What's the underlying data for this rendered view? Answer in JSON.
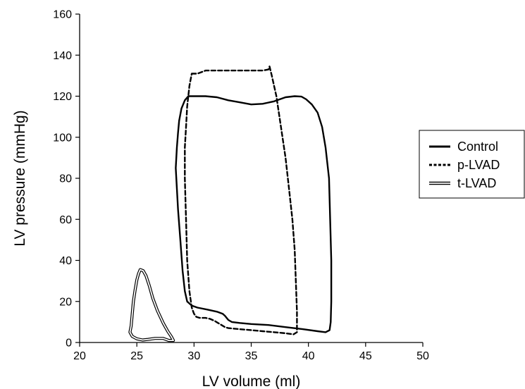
{
  "chart_data": {
    "type": "line",
    "title": "",
    "xlabel": "LV volume (ml)",
    "ylabel": "LV pressure (mmHg)",
    "xlim": [
      20,
      50
    ],
    "ylim": [
      0,
      160
    ],
    "x_ticks": [
      20,
      25,
      30,
      35,
      40,
      45,
      50
    ],
    "y_ticks": [
      0,
      20,
      40,
      60,
      80,
      100,
      120,
      140,
      160
    ],
    "grid": false,
    "legend_position": "right",
    "series": [
      {
        "name": "Control",
        "style": "solid",
        "color": "#000000",
        "x": [
          29.5,
          30.2,
          31.0,
          32.0,
          33.0,
          34.0,
          35.0,
          36.0,
          37.0,
          38.0,
          38.8,
          39.4,
          39.8,
          40.3,
          40.8,
          41.2,
          41.5,
          41.8,
          41.9,
          42.0,
          42.0,
          41.95,
          41.85,
          41.5,
          40.8,
          39.5,
          38.0,
          36.5,
          35.0,
          34.0,
          33.3,
          33.0,
          32.7,
          32.5,
          32.0,
          31.2,
          30.3,
          29.8,
          29.4,
          29.2,
          29.0,
          28.8,
          28.6,
          28.5,
          28.4,
          28.5,
          28.6,
          28.7,
          28.9,
          29.2,
          29.5
        ],
        "y": [
          120,
          120,
          120,
          119.5,
          118,
          117,
          116,
          116.3,
          117.5,
          119.5,
          120,
          119.8,
          118.5,
          116,
          112,
          105,
          95,
          80,
          60,
          40,
          20,
          10,
          6,
          5,
          5.5,
          6.5,
          7.5,
          8.5,
          9,
          9.5,
          10,
          11,
          13,
          14,
          15,
          16,
          17,
          18,
          20,
          25,
          35,
          50,
          65,
          75,
          85,
          95,
          102,
          108,
          114,
          118,
          120
        ]
      },
      {
        "name": "p-LVAD",
        "style": "dashed",
        "color": "#000000",
        "x": [
          29.8,
          30.3,
          31.0,
          32.0,
          33.0,
          34.0,
          35.0,
          35.5,
          36.0,
          36.5,
          36.6,
          36.8,
          37.2,
          37.6,
          38.0,
          38.3,
          38.6,
          38.8,
          38.9,
          39.0,
          39.0,
          38.7,
          38.0,
          37.0,
          36.0,
          35.0,
          34.0,
          33.0,
          32.7,
          32.4,
          32.1,
          31.8,
          31.4,
          31.0,
          30.5,
          30.2,
          30.0,
          29.8,
          29.6,
          29.4,
          29.3,
          29.2,
          29.2,
          29.3,
          29.4,
          29.6,
          29.8
        ],
        "y": [
          131,
          131,
          132.5,
          132.5,
          132.5,
          132.5,
          132.5,
          132.5,
          132.5,
          133,
          134.5,
          130,
          120,
          105,
          90,
          75,
          60,
          45,
          30,
          15,
          5,
          4,
          4.5,
          5,
          5.5,
          6,
          6.5,
          7,
          7.5,
          8.5,
          9.5,
          10.5,
          11.5,
          12,
          12,
          12.5,
          14,
          17,
          25,
          40,
          60,
          80,
          95,
          105,
          115,
          125,
          131
        ]
      },
      {
        "name": "t-LVAD",
        "style": "double",
        "color": "#000000",
        "x": [
          25.3,
          25.55,
          25.8,
          26.1,
          26.4,
          26.8,
          27.3,
          27.7,
          28.0,
          28.2,
          27.8,
          27.3,
          26.6,
          26.0,
          25.5,
          25.0,
          24.6,
          24.4,
          24.5,
          24.6,
          24.7,
          24.85,
          25.0,
          25.15,
          25.3
        ],
        "y": [
          35.5,
          35.0,
          32.5,
          27.5,
          21.5,
          15.5,
          9.5,
          5.5,
          3.0,
          1.0,
          1.0,
          2.0,
          2.0,
          1.5,
          1.2,
          1.8,
          3.0,
          5.0,
          8.0,
          14.0,
          20.0,
          25.5,
          30.5,
          33.5,
          35.5
        ]
      }
    ]
  }
}
